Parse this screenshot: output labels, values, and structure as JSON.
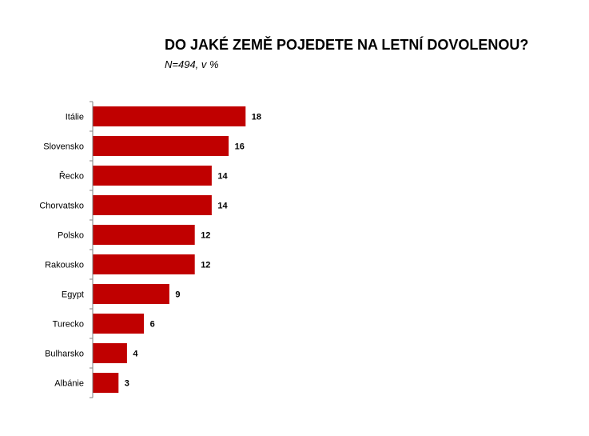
{
  "chart_data": {
    "type": "bar",
    "orientation": "horizontal",
    "title": "DO JAKÉ ZEMĚ POJEDETE NA LETNÍ DOVOLENOU?",
    "subtitle": "N=494, v %",
    "categories": [
      "Itálie",
      "Slovensko",
      "Řecko",
      "Chorvatsko",
      "Polsko",
      "Rakousko",
      "Egypt",
      "Turecko",
      "Bulharsko",
      "Albánie"
    ],
    "values": [
      18,
      16,
      14,
      14,
      12,
      12,
      9,
      6,
      4,
      3
    ],
    "bar_color": "#C00000",
    "xlim": [
      0,
      18
    ],
    "grid": false,
    "legend": "none"
  }
}
